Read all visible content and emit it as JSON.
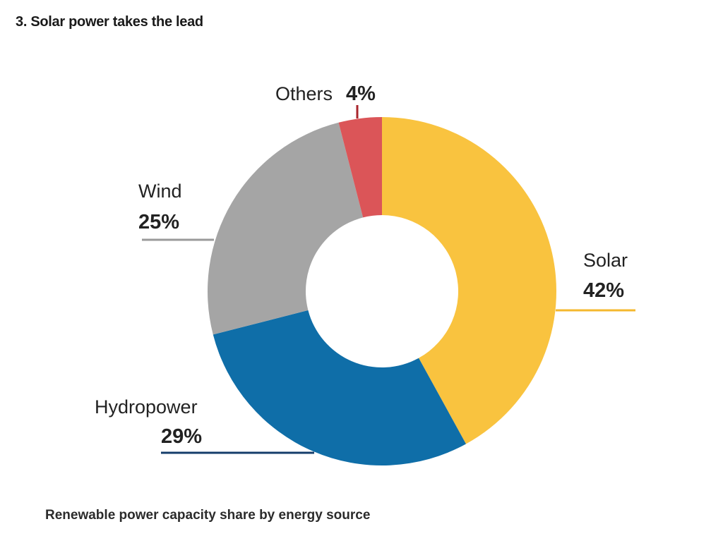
{
  "chart_data": {
    "type": "pie",
    "donut": true,
    "title": "3. Solar power takes the lead",
    "caption": "Renewable power capacity share by energy source",
    "unit": "%",
    "slices": [
      {
        "label": "Solar",
        "value": 42,
        "display": "42%",
        "color": "#f9c33f",
        "leader_color": "#f4b82e"
      },
      {
        "label": "Hydropower",
        "value": 29,
        "display": "29%",
        "color": "#0f6ea8",
        "leader_color": "#153d6b"
      },
      {
        "label": "Wind",
        "value": 25,
        "display": "25%",
        "color": "#a5a5a5",
        "leader_color": "#9a9a9a"
      },
      {
        "label": "Others",
        "value": 4,
        "display": "4%",
        "color": "#db5558",
        "leader_color": "#a8252c"
      }
    ]
  }
}
